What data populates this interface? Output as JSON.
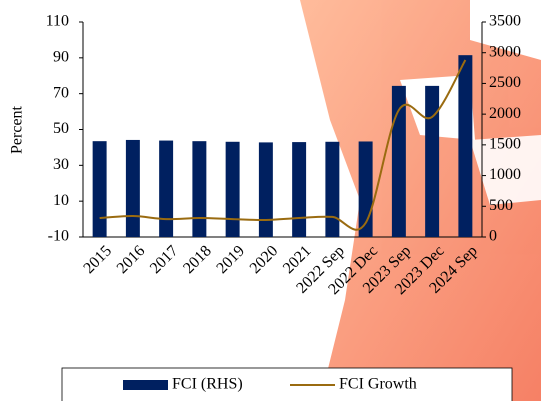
{
  "chart_data": {
    "type": "bar",
    "ylabel": "Percent",
    "categories": [
      "2015",
      "2016",
      "2017",
      "2018",
      "2019",
      "2020",
      "2021",
      "2022 Sep",
      "2022 Dec",
      "2023 Sep",
      "2023 Dec",
      "2024 Sep"
    ],
    "series": [
      {
        "name": "FCI (RHS)",
        "type": "bar",
        "axis": "y2",
        "color": "#002060",
        "values": [
          1560,
          1580,
          1570,
          1560,
          1550,
          1540,
          1545,
          1550,
          1555,
          2460,
          2460,
          2960
        ]
      },
      {
        "name": "FCI Growth",
        "type": "line",
        "axis": "y",
        "color": "#9a6b10",
        "values": [
          0.6,
          1.7,
          0,
          0.6,
          0,
          -0.5,
          0.6,
          1.2,
          -2.2,
          60.9,
          57,
          88.8
        ]
      }
    ],
    "ylim": [
      -10,
      110
    ],
    "yticks": [
      -10,
      10,
      30,
      50,
      70,
      90,
      110
    ],
    "y2lim": [
      0,
      3500
    ],
    "y2ticks": [
      0,
      500,
      1000,
      1500,
      2000,
      2500,
      3000,
      3500
    ],
    "legend": "bottom"
  }
}
